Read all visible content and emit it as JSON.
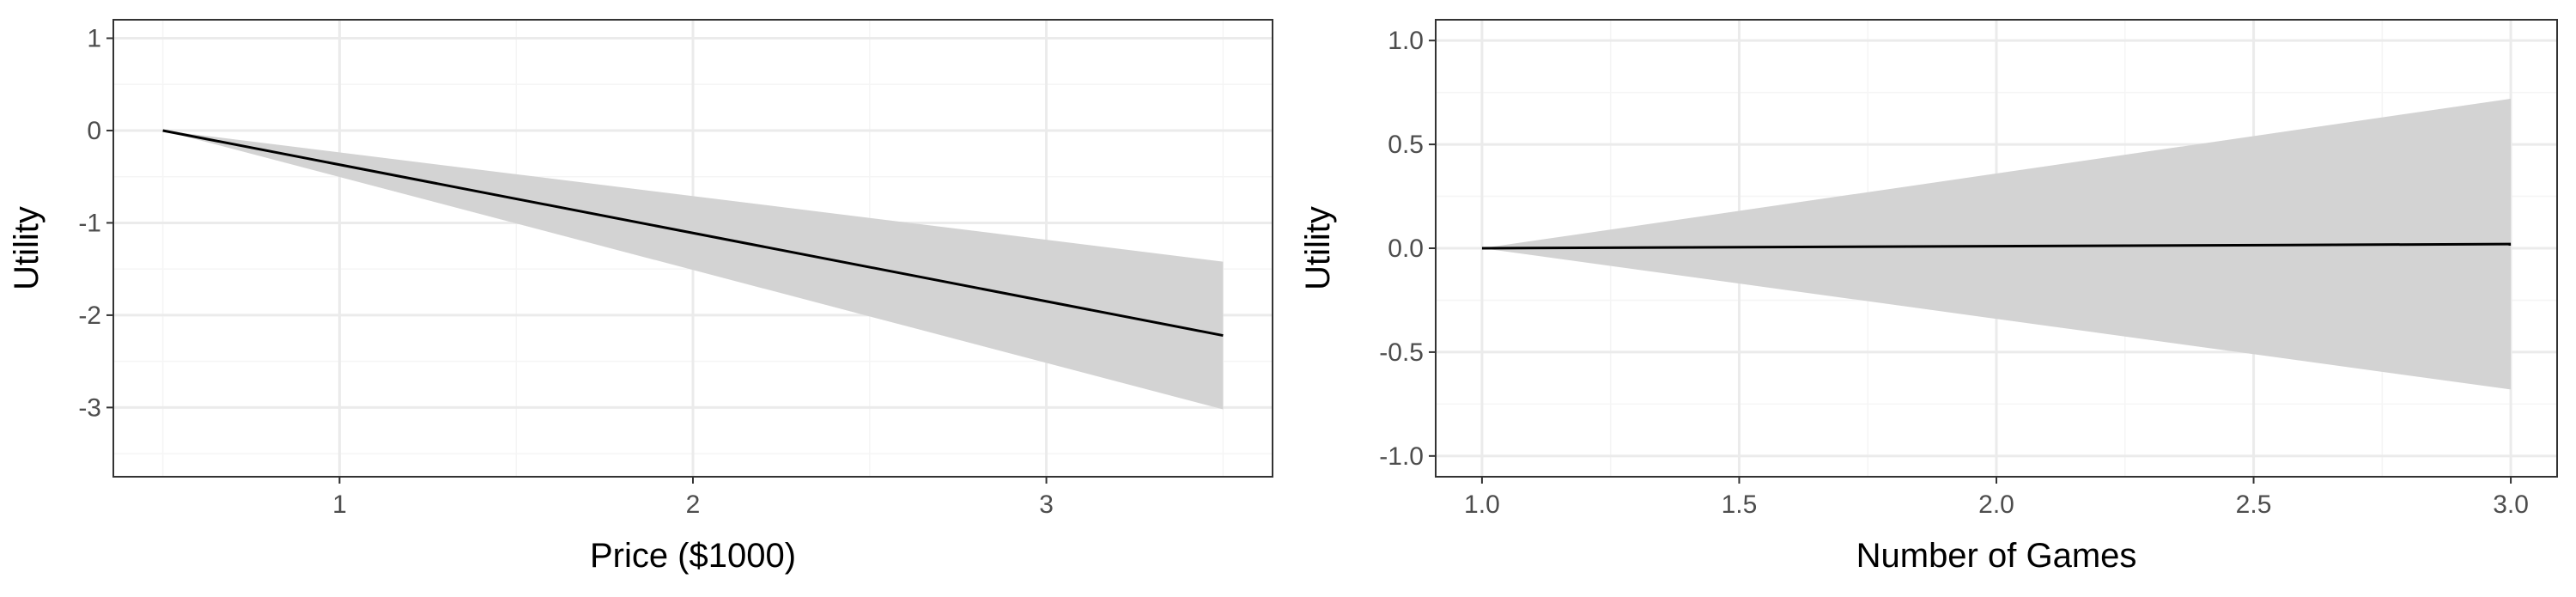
{
  "colors": {
    "panel_border": "#333333",
    "grid_major": "#ebebeb",
    "grid_minor": "#f5f5f5",
    "ribbon": "#d3d3d3",
    "line": "#000000",
    "background": "#ffffff"
  },
  "chart_data": [
    {
      "type": "line",
      "title": "",
      "xlabel": "Price ($1000)",
      "ylabel": "Utility",
      "xlim": [
        0.36,
        3.64
      ],
      "ylim": [
        -3.75,
        1.2
      ],
      "x_ticks": [
        1,
        2,
        3
      ],
      "x_tick_labels": [
        "1",
        "2",
        "3"
      ],
      "y_ticks": [
        -3,
        -2,
        -1,
        0,
        1
      ],
      "y_tick_labels": [
        "-3",
        "-2",
        "-1",
        "0",
        "1"
      ],
      "grid": true,
      "series": [
        {
          "x": [
            0.5,
            3.5
          ],
          "y": [
            0,
            -2.22
          ],
          "ci_lower": [
            0,
            -3.02
          ],
          "ci_upper": [
            0,
            -1.42
          ]
        }
      ]
    },
    {
      "type": "line",
      "title": "",
      "xlabel": "Number of Games",
      "ylabel": "Utility",
      "xlim": [
        0.91,
        3.09
      ],
      "ylim": [
        -1.1,
        1.1
      ],
      "x_ticks": [
        1.0,
        1.5,
        2.0,
        2.5,
        3.0
      ],
      "x_tick_labels": [
        "1.0",
        "1.5",
        "2.0",
        "2.5",
        "3.0"
      ],
      "y_ticks": [
        -1.0,
        -0.5,
        0.0,
        0.5,
        1.0
      ],
      "y_tick_labels": [
        "-1.0",
        "-0.5",
        "0.0",
        "0.5",
        "1.0"
      ],
      "grid": true,
      "series": [
        {
          "x": [
            1.0,
            3.0
          ],
          "y": [
            0,
            0.02
          ],
          "ci_lower": [
            0,
            -0.68
          ],
          "ci_upper": [
            0,
            0.72
          ]
        }
      ]
    }
  ]
}
